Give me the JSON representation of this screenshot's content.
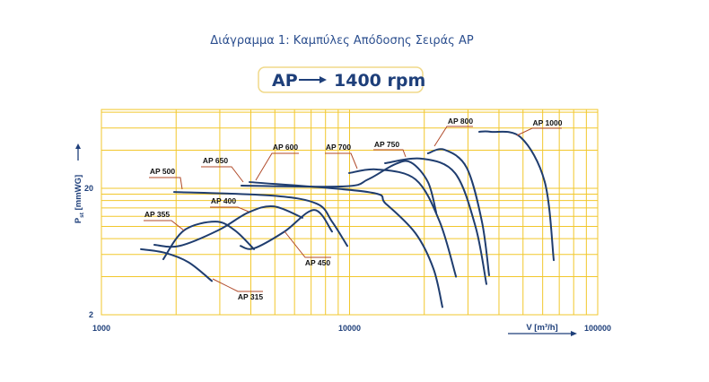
{
  "header": {
    "title": "Διάγραμμα 1:  Καμπύλες Απόδοσης Σειράς AP",
    "series_name": "AP",
    "speed": "1400 rpm"
  },
  "chart_data": {
    "type": "line",
    "title": "Διάγραμμα 1:  Καμπύλες Απόδοσης Σειράς AP",
    "subtitle": "AP → 1400 rpm",
    "xlabel": "V [m³/h]",
    "ylabel": "Pst [mmWG]",
    "ylabel_main": "P",
    "ylabel_sub": "st",
    "ylabel_unit": "[mmWG]",
    "xscale": "log",
    "yscale": "log",
    "xlim": [
      1000,
      100000
    ],
    "ylim": [
      2,
      80
    ],
    "x_ticks": [
      {
        "value": 1000,
        "label": "1000"
      },
      {
        "value": 10000,
        "label": "10000"
      },
      {
        "value": 100000,
        "label": "100000"
      }
    ],
    "y_ticks": [
      {
        "value": 2,
        "label": "2"
      },
      {
        "value": 20,
        "label": "20"
      }
    ],
    "x_grid": [
      2000,
      3000,
      4000,
      5000,
      6000,
      7000,
      8000,
      9000,
      10000,
      20000,
      30000,
      40000,
      50000,
      60000,
      70000,
      80000,
      90000
    ],
    "y_grid": [
      4,
      6,
      8,
      10,
      12,
      14,
      16,
      18,
      20,
      40,
      60,
      80
    ],
    "grid": true,
    "colors": {
      "grid": "#f2c72c",
      "curve": "#1f3d6f",
      "leader": "#b04a2a",
      "text": "#1e3f7a"
    },
    "series": [
      {
        "name": "AP 315",
        "points": [
          [
            1443,
            6.6
          ],
          [
            1791,
            6.2
          ],
          [
            2244,
            5.2
          ],
          [
            2786,
            3.7
          ]
        ]
      },
      {
        "name": "AP 355",
        "points": [
          [
            1776,
            5.5
          ],
          [
            2152,
            9.3
          ],
          [
            2880,
            10.9
          ],
          [
            3450,
            9.3
          ],
          [
            4120,
            6.6
          ]
        ]
      },
      {
        "name": "AP 400",
        "points": [
          [
            1634,
            7.15
          ],
          [
            2063,
            7.0
          ],
          [
            2953,
            9.3
          ],
          [
            3917,
            12.9
          ],
          [
            4946,
            14.4
          ],
          [
            6457,
            11.7
          ]
        ]
      },
      {
        "name": "AP 450",
        "points": [
          [
            3636,
            7.0
          ],
          [
            4120,
            6.7
          ],
          [
            5470,
            9.1
          ],
          [
            7197,
            13.5
          ],
          [
            8500,
            9.1
          ]
        ]
      },
      {
        "name": "AP 500",
        "points": [
          [
            1963,
            18.7
          ],
          [
            4868,
            17.5
          ],
          [
            7380,
            15.1
          ],
          [
            8500,
            10.9
          ],
          [
            9795,
            7.0
          ]
        ]
      },
      {
        "name": "AP 600",
        "points": [
          [
            3953,
            22.4
          ],
          [
            11860,
            18.7
          ],
          [
            14000,
            15.1
          ],
          [
            18450,
            8.8
          ],
          [
            21800,
            4.6
          ],
          [
            23670,
            2.3
          ]
        ]
      },
      {
        "name": "AP 650",
        "points": [
          [
            3665,
            21.0
          ],
          [
            9470,
            20.7
          ],
          [
            11860,
            23.5
          ],
          [
            15240,
            31
          ],
          [
            17700,
            32
          ],
          [
            20700,
            22.4
          ],
          [
            22340,
            12.9
          ]
        ]
      },
      {
        "name": "AP 700",
        "points": [
          [
            9960,
            26.4
          ],
          [
            12890,
            28.2
          ],
          [
            18450,
            23.5
          ],
          [
            23070,
            10.9
          ],
          [
            26850,
            4.0
          ]
        ]
      },
      {
        "name": "AP 750",
        "points": [
          [
            13900,
            31.6
          ],
          [
            19550,
            34.3
          ],
          [
            26600,
            26.4
          ],
          [
            32200,
            9.9
          ],
          [
            35600,
            3.5
          ]
        ]
      },
      {
        "name": "AP 800",
        "points": [
          [
            20700,
            37.8
          ],
          [
            24100,
            40.4
          ],
          [
            29650,
            29.1
          ],
          [
            34150,
            10.9
          ],
          [
            36500,
            4.1
          ]
        ]
      },
      {
        "name": "AP 1000",
        "points": [
          [
            33300,
            56
          ],
          [
            37100,
            56
          ],
          [
            48900,
            50.7
          ],
          [
            61200,
            22.4
          ],
          [
            66500,
            5.4
          ]
        ]
      }
    ]
  }
}
